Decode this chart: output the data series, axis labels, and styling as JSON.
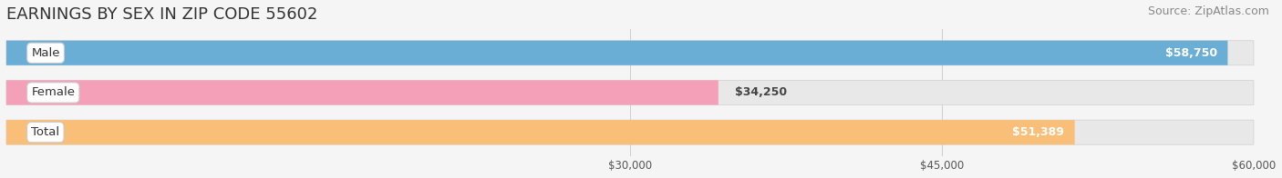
{
  "title": "EARNINGS BY SEX IN ZIP CODE 55602",
  "source": "Source: ZipAtlas.com",
  "categories": [
    "Male",
    "Female",
    "Total"
  ],
  "values": [
    58750,
    34250,
    51389
  ],
  "bar_colors": [
    "#6aaed6",
    "#f4a0b8",
    "#f9be78"
  ],
  "value_labels": [
    "$58,750",
    "$34,250",
    "$51,389"
  ],
  "value_inside": [
    true,
    false,
    true
  ],
  "xmin": 0,
  "xmax": 60000,
  "xticks": [
    30000,
    45000,
    60000
  ],
  "xtick_labels": [
    "$30,000",
    "$45,000",
    "$60,000"
  ],
  "bar_height": 0.62,
  "bg_color": "#f5f5f5",
  "track_color": "#e8e8e8",
  "title_fontsize": 13,
  "source_fontsize": 9,
  "label_fontsize": 9.5,
  "value_fontsize": 9
}
